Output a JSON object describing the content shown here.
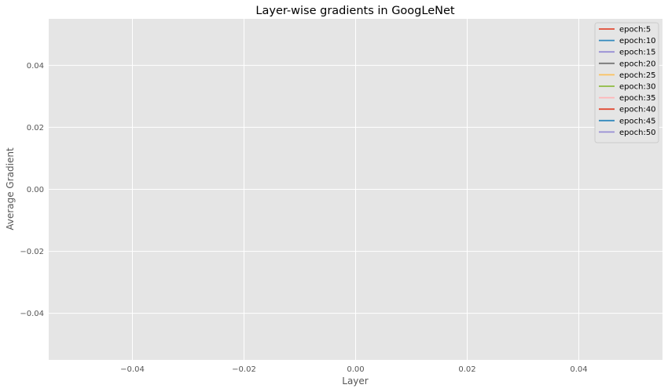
{
  "chart_data": {
    "type": "line",
    "title": "Layer-wise gradients in GoogLeNet",
    "xlabel": "Layer",
    "ylabel": "Average Gradient",
    "xlim": [
      -0.055,
      0.055
    ],
    "ylim": [
      -0.055,
      0.055
    ],
    "xticks": [
      -0.04,
      -0.02,
      0.0,
      0.02,
      0.04
    ],
    "xtick_labels": [
      "−0.04",
      "−0.02",
      "0.00",
      "0.02",
      "0.04"
    ],
    "yticks": [
      0.04,
      0.02,
      0.0,
      -0.02,
      -0.04
    ],
    "ytick_labels": [
      "0.04",
      "0.02",
      "0.00",
      "−0.02",
      "−0.04"
    ],
    "grid": true,
    "legend_position": "top-right",
    "series": [
      {
        "name": "epoch:5",
        "color": "#E24A33",
        "x": [],
        "values": []
      },
      {
        "name": "epoch:10",
        "color": "#348ABD",
        "x": [],
        "values": []
      },
      {
        "name": "epoch:15",
        "color": "#988ED5",
        "x": [],
        "values": []
      },
      {
        "name": "epoch:20",
        "color": "#777777",
        "x": [],
        "values": []
      },
      {
        "name": "epoch:25",
        "color": "#FBC15E",
        "x": [],
        "values": []
      },
      {
        "name": "epoch:30",
        "color": "#8EBA42",
        "x": [],
        "values": []
      },
      {
        "name": "epoch:35",
        "color": "#FFB5B8",
        "x": [],
        "values": []
      },
      {
        "name": "epoch:40",
        "color": "#E24A33",
        "x": [],
        "values": []
      },
      {
        "name": "epoch:45",
        "color": "#348ABD",
        "x": [],
        "values": []
      },
      {
        "name": "epoch:50",
        "color": "#988ED5",
        "x": [],
        "values": []
      }
    ]
  },
  "colors": {
    "plot_background": "#E5E5E5",
    "grid": "#FFFFFF",
    "legend_background": "#E5E5E5",
    "legend_border": "#CCCCCC"
  }
}
